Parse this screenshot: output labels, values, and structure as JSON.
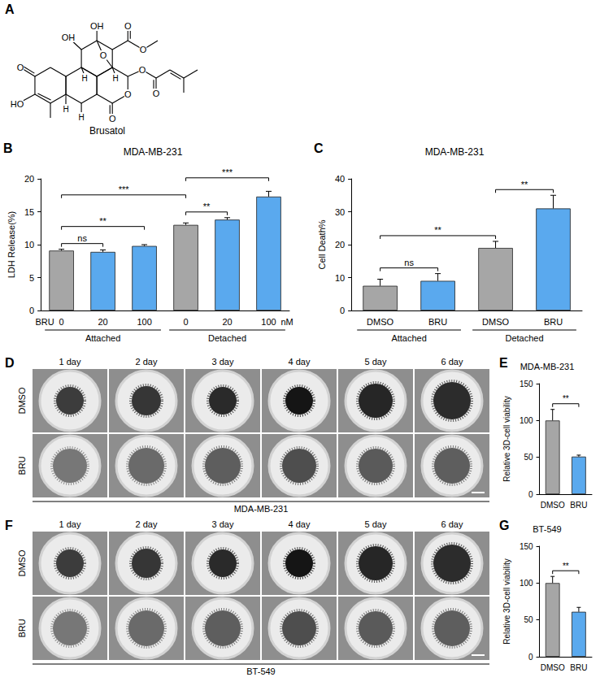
{
  "panel_A": {
    "letter": "A",
    "compound": "Brusatol",
    "atom_labels": [
      "O",
      "HO",
      "OH",
      "OH",
      "O",
      "O",
      "O",
      "O",
      "O",
      "O",
      "O",
      "H",
      "H",
      "H",
      "H"
    ]
  },
  "chart_data": [
    {
      "panel": "B",
      "type": "bar",
      "title": "MDA-MB-231",
      "y_label": "LDH Release(%)",
      "categories": [
        "0",
        "20",
        "100",
        "0",
        "20",
        "100"
      ],
      "groups": [
        "Attached",
        "Attached",
        "Attached",
        "Detached",
        "Detached",
        "Detached"
      ],
      "x_prefix": "BRU",
      "x_unit": "nM",
      "values": [
        9.1,
        8.9,
        9.8,
        13.0,
        13.8,
        17.3
      ],
      "errors": [
        0.2,
        0.3,
        0.2,
        0.3,
        0.3,
        0.8
      ],
      "colors": [
        "#a6a6a6",
        "#5aa9ee",
        "#5aa9ee",
        "#a6a6a6",
        "#5aa9ee",
        "#5aa9ee"
      ],
      "ylim": [
        0,
        20
      ],
      "yticks": [
        0,
        5,
        10,
        15,
        20
      ],
      "grid": false,
      "significance": [
        {
          "from": 0,
          "to": 1,
          "label": "ns"
        },
        {
          "from": 0,
          "to": 2,
          "label": "**"
        },
        {
          "from": 3,
          "to": 4,
          "label": "**"
        },
        {
          "from": 0,
          "to": 3,
          "label": "***"
        },
        {
          "from": 3,
          "to": 5,
          "label": "***"
        }
      ]
    },
    {
      "panel": "C",
      "type": "bar",
      "title": "MDA-MB-231",
      "y_label": "Cell Death%",
      "categories": [
        "DMSO",
        "BRU",
        "DMSO",
        "BRU"
      ],
      "groups": [
        "Attached",
        "Attached",
        "Detached",
        "Detached"
      ],
      "values": [
        7.5,
        9.0,
        19.0,
        31.0
      ],
      "errors": [
        2.0,
        2.2,
        2.0,
        4.0
      ],
      "colors": [
        "#a6a6a6",
        "#5aa9ee",
        "#a6a6a6",
        "#5aa9ee"
      ],
      "ylim": [
        0,
        40
      ],
      "yticks": [
        0,
        10,
        20,
        30,
        40
      ],
      "grid": false,
      "significance": [
        {
          "from": 0,
          "to": 1,
          "label": "ns"
        },
        {
          "from": 0,
          "to": 2,
          "label": "**"
        },
        {
          "from": 2,
          "to": 3,
          "label": "**"
        }
      ]
    },
    {
      "panel": "E",
      "type": "bar",
      "title": "MDA-MB-231",
      "y_label": "Relative 3D-cell viability",
      "categories": [
        "DMSO",
        "BRU"
      ],
      "values": [
        100,
        51
      ],
      "errors": [
        15,
        2
      ],
      "colors": [
        "#a6a6a6",
        "#5aa9ee"
      ],
      "ylim": [
        0,
        150
      ],
      "yticks": [
        0,
        50,
        100,
        150
      ],
      "grid": false,
      "significance": [
        {
          "from": 0,
          "to": 1,
          "label": "**"
        }
      ]
    },
    {
      "panel": "G",
      "type": "bar",
      "title": "BT-549",
      "y_label": "Relative 3D-cell viability",
      "categories": [
        "DMSO",
        "BRU"
      ],
      "values": [
        100,
        61
      ],
      "errors": [
        9,
        6
      ],
      "colors": [
        "#a6a6a6",
        "#5aa9ee"
      ],
      "ylim": [
        0,
        150
      ],
      "yticks": [
        0,
        50,
        100,
        150
      ],
      "grid": false,
      "significance": [
        {
          "from": 0,
          "to": 1,
          "label": "**"
        }
      ]
    }
  ],
  "panel_D": {
    "letter": "D",
    "days": [
      "1 day",
      "2 day",
      "3 day",
      "4 day",
      "5 day",
      "6 day"
    ],
    "rows": [
      "DMSO",
      "BRU"
    ],
    "cell_line": "MDA-MB-231"
  },
  "panel_F": {
    "letter": "F",
    "days": [
      "1 day",
      "2 day",
      "3 day",
      "4 day",
      "5 day",
      "6 day"
    ],
    "rows": [
      "DMSO",
      "BRU"
    ],
    "cell_line": "BT-549"
  }
}
